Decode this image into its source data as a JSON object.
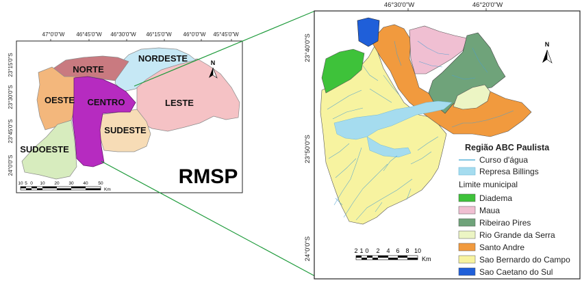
{
  "left_map": {
    "title": "RMSP",
    "top_ticks": [
      "47°0'0\"W",
      "46°45'0\"W",
      "46°30'0\"W",
      "46°15'0\"W",
      "46°0'0\"W",
      "45°45'0\"W"
    ],
    "left_ticks": [
      "23°15'0\"S",
      "23°30'0\"S",
      "23°45'0\"S",
      "24°0'0\"S"
    ],
    "regions": [
      {
        "label": "NORTE",
        "color": "#c97a80"
      },
      {
        "label": "NORDESTE",
        "color": "#c6e8f5"
      },
      {
        "label": "OESTE",
        "color": "#f3b77c"
      },
      {
        "label": "CENTRO",
        "color": "#b62bc0"
      },
      {
        "label": "LESTE",
        "color": "#f5c2c5"
      },
      {
        "label": "SUDESTE",
        "color": "#f7dcb6"
      },
      {
        "label": "SUDOESTE",
        "color": "#d7ecbe"
      }
    ],
    "scale_numbers": [
      "10",
      "5",
      "0",
      "10",
      "20",
      "30",
      "40",
      "50"
    ],
    "scale_unit": "Km",
    "north_label": "N"
  },
  "right_map": {
    "top_ticks": [
      "46°30'0\"W",
      "46°20'0\"W"
    ],
    "left_ticks": [
      "23°40'0\"S",
      "23°50'0\"S",
      "24°0'0\"S"
    ],
    "scale_numbers": [
      "2",
      "1",
      "0",
      "2",
      "4",
      "6",
      "8",
      "10"
    ],
    "scale_unit": "Km",
    "north_label": "N"
  },
  "legend": {
    "title": "Região ABC Paulista",
    "line_items": [
      {
        "label": "Curso d'água",
        "color": "#5ab4d8"
      },
      {
        "label": "Represa Billings",
        "color": "#a5dcef"
      }
    ],
    "subtitle": "Limite municipal",
    "municipalities": [
      {
        "label": "Diadema",
        "color": "#3ec23a"
      },
      {
        "label": "Maua",
        "color": "#f0bfd2"
      },
      {
        "label": "Ribeirao Pires",
        "color": "#6fa37a"
      },
      {
        "label": "Rio Grande da Serra",
        "color": "#ecf5c4"
      },
      {
        "label": "Santo Andre",
        "color": "#f19a3e"
      },
      {
        "label": "Sao Bernardo do Campo",
        "color": "#f7f3a0"
      },
      {
        "label": "Sao Caetano do Sul",
        "color": "#1f5fd9"
      }
    ]
  }
}
